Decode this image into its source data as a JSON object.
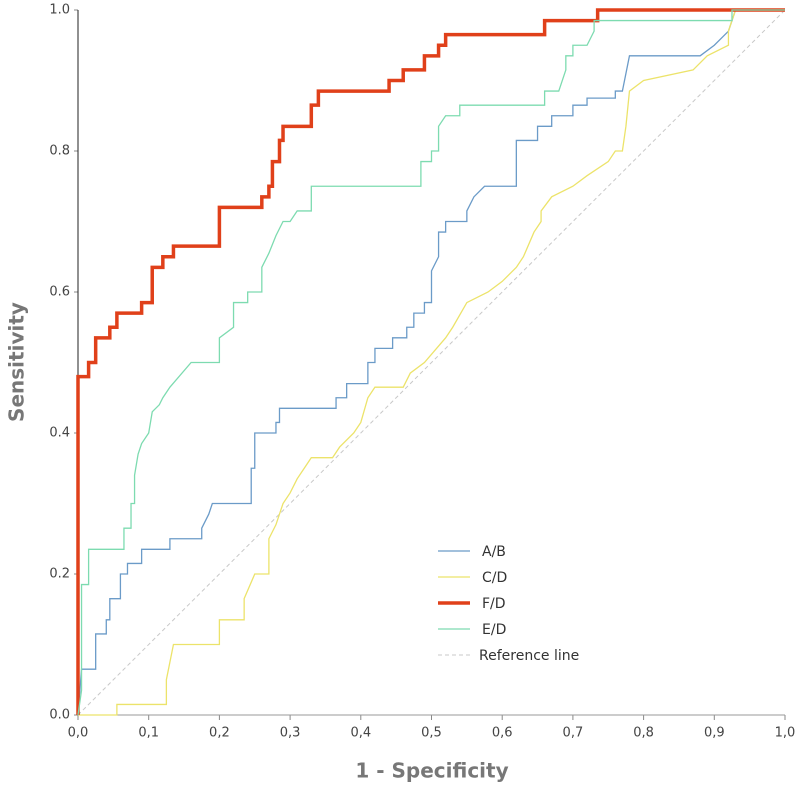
{
  "chart_data": {
    "type": "line",
    "x_label": "1 - Specificity",
    "y_label": "Sensitivity",
    "xlim": [
      0,
      1
    ],
    "ylim": [
      0,
      1
    ],
    "xticks": [
      {
        "value": 0,
        "label": "0,0"
      },
      {
        "value": 0.1,
        "label": "0,1"
      },
      {
        "value": 0.2,
        "label": "0,2"
      },
      {
        "value": 0.3,
        "label": "0,3"
      },
      {
        "value": 0.4,
        "label": "0,4"
      },
      {
        "value": 0.5,
        "label": "0,5"
      },
      {
        "value": 0.6,
        "label": "0,6"
      },
      {
        "value": 0.7,
        "label": "0,7"
      },
      {
        "value": 0.8,
        "label": "0,8"
      },
      {
        "value": 0.9,
        "label": "0,9"
      },
      {
        "value": 1,
        "label": "1,0"
      }
    ],
    "yticks": [
      {
        "value": 0,
        "label": "0.0"
      },
      0.2,
      0.4,
      0.6,
      0.8,
      {
        "value": 1,
        "label": "1.0"
      }
    ],
    "grid": false,
    "series": [
      {
        "name": "A/B",
        "color": "#6b9bc8",
        "width": 1.3,
        "x": [
          0,
          0.005,
          0.025,
          0.025,
          0.04,
          0.04,
          0.045,
          0.045,
          0.06,
          0.06,
          0.07,
          0.07,
          0.09,
          0.09,
          0.13,
          0.13,
          0.175,
          0.175,
          0.185,
          0.19,
          0.245,
          0.245,
          0.25,
          0.25,
          0.28,
          0.28,
          0.285,
          0.285,
          0.365,
          0.365,
          0.38,
          0.38,
          0.41,
          0.41,
          0.42,
          0.42,
          0.445,
          0.445,
          0.465,
          0.465,
          0.475,
          0.475,
          0.49,
          0.49,
          0.5,
          0.5,
          0.51,
          0.51,
          0.52,
          0.52,
          0.55,
          0.55,
          0.56,
          0.575,
          0.62,
          0.62,
          0.65,
          0.65,
          0.67,
          0.67,
          0.7,
          0.7,
          0.72,
          0.72,
          0.76,
          0.76,
          0.77,
          0.78,
          0.88,
          0.9,
          0.92,
          0.93,
          1
        ],
        "values": [
          0,
          0.065,
          0.065,
          0.115,
          0.115,
          0.135,
          0.135,
          0.165,
          0.165,
          0.2,
          0.2,
          0.215,
          0.215,
          0.235,
          0.235,
          0.25,
          0.25,
          0.265,
          0.285,
          0.3,
          0.3,
          0.35,
          0.35,
          0.4,
          0.4,
          0.415,
          0.415,
          0.435,
          0.435,
          0.45,
          0.45,
          0.47,
          0.47,
          0.5,
          0.5,
          0.52,
          0.52,
          0.535,
          0.535,
          0.55,
          0.55,
          0.57,
          0.57,
          0.585,
          0.585,
          0.63,
          0.65,
          0.685,
          0.685,
          0.7,
          0.7,
          0.715,
          0.735,
          0.75,
          0.75,
          0.815,
          0.815,
          0.835,
          0.835,
          0.85,
          0.85,
          0.865,
          0.865,
          0.875,
          0.875,
          0.885,
          0.885,
          0.935,
          0.935,
          0.95,
          0.97,
          1,
          1
        ]
      },
      {
        "name": "C/D",
        "color": "#ece36a",
        "width": 1.3,
        "x": [
          0,
          0.055,
          0.055,
          0.125,
          0.125,
          0.135,
          0.2,
          0.2,
          0.235,
          0.235,
          0.25,
          0.27,
          0.27,
          0.28,
          0.29,
          0.3,
          0.31,
          0.32,
          0.33,
          0.36,
          0.37,
          0.39,
          0.4,
          0.41,
          0.42,
          0.46,
          0.47,
          0.49,
          0.52,
          0.53,
          0.55,
          0.58,
          0.6,
          0.62,
          0.63,
          0.645,
          0.655,
          0.655,
          0.67,
          0.7,
          0.72,
          0.75,
          0.76,
          0.77,
          0.775,
          0.78,
          0.8,
          0.87,
          0.89,
          0.92,
          0.92,
          0.93,
          1
        ],
        "values": [
          0,
          0,
          0.015,
          0.015,
          0.05,
          0.1,
          0.1,
          0.135,
          0.135,
          0.165,
          0.2,
          0.2,
          0.25,
          0.27,
          0.3,
          0.315,
          0.335,
          0.35,
          0.365,
          0.365,
          0.38,
          0.4,
          0.415,
          0.45,
          0.465,
          0.465,
          0.485,
          0.5,
          0.535,
          0.55,
          0.585,
          0.6,
          0.615,
          0.635,
          0.65,
          0.685,
          0.7,
          0.715,
          0.735,
          0.75,
          0.765,
          0.785,
          0.8,
          0.8,
          0.835,
          0.885,
          0.9,
          0.915,
          0.935,
          0.95,
          0.97,
          1,
          1
        ]
      },
      {
        "name": "F/D",
        "color": "#e0401a",
        "width": 3.5,
        "x": [
          0,
          0,
          0.015,
          0.015,
          0.025,
          0.025,
          0.045,
          0.045,
          0.055,
          0.055,
          0.09,
          0.09,
          0.105,
          0.105,
          0.12,
          0.12,
          0.135,
          0.135,
          0.2,
          0.2,
          0.26,
          0.26,
          0.27,
          0.27,
          0.275,
          0.275,
          0.285,
          0.285,
          0.29,
          0.29,
          0.33,
          0.33,
          0.34,
          0.34,
          0.44,
          0.44,
          0.46,
          0.46,
          0.49,
          0.49,
          0.51,
          0.51,
          0.52,
          0.52,
          0.66,
          0.66,
          0.735,
          0.735,
          1
        ],
        "values": [
          0,
          0.48,
          0.48,
          0.5,
          0.5,
          0.535,
          0.535,
          0.55,
          0.55,
          0.57,
          0.57,
          0.585,
          0.585,
          0.635,
          0.635,
          0.65,
          0.65,
          0.665,
          0.665,
          0.72,
          0.72,
          0.735,
          0.735,
          0.75,
          0.75,
          0.785,
          0.785,
          0.815,
          0.815,
          0.835,
          0.835,
          0.865,
          0.865,
          0.885,
          0.885,
          0.9,
          0.9,
          0.915,
          0.915,
          0.935,
          0.935,
          0.95,
          0.95,
          0.965,
          0.965,
          0.985,
          0.985,
          1,
          1
        ]
      },
      {
        "name": "E/D",
        "color": "#7ddbb0",
        "width": 1.3,
        "x": [
          0,
          0.005,
          0.005,
          0.015,
          0.015,
          0.065,
          0.065,
          0.075,
          0.075,
          0.08,
          0.08,
          0.085,
          0.09,
          0.1,
          0.105,
          0.115,
          0.12,
          0.13,
          0.16,
          0.2,
          0.2,
          0.22,
          0.22,
          0.24,
          0.24,
          0.26,
          0.26,
          0.27,
          0.28,
          0.29,
          0.3,
          0.31,
          0.33,
          0.33,
          0.485,
          0.485,
          0.5,
          0.5,
          0.51,
          0.51,
          0.52,
          0.54,
          0.54,
          0.66,
          0.66,
          0.68,
          0.69,
          0.69,
          0.7,
          0.7,
          0.72,
          0.73,
          0.73,
          0.925,
          0.925,
          1
        ],
        "values": [
          0,
          0.035,
          0.185,
          0.185,
          0.235,
          0.235,
          0.265,
          0.265,
          0.3,
          0.3,
          0.34,
          0.37,
          0.385,
          0.4,
          0.43,
          0.44,
          0.45,
          0.465,
          0.5,
          0.5,
          0.535,
          0.55,
          0.585,
          0.585,
          0.6,
          0.6,
          0.635,
          0.655,
          0.68,
          0.7,
          0.7,
          0.715,
          0.715,
          0.75,
          0.75,
          0.785,
          0.785,
          0.8,
          0.8,
          0.835,
          0.85,
          0.85,
          0.865,
          0.865,
          0.885,
          0.885,
          0.915,
          0.935,
          0.935,
          0.95,
          0.95,
          0.97,
          0.985,
          0.985,
          1,
          1
        ]
      },
      {
        "name": "Reference line",
        "color": "#c8c8c8",
        "width": 1,
        "dashed": true,
        "x": [
          0,
          1
        ],
        "values": [
          0,
          1
        ]
      }
    ]
  }
}
